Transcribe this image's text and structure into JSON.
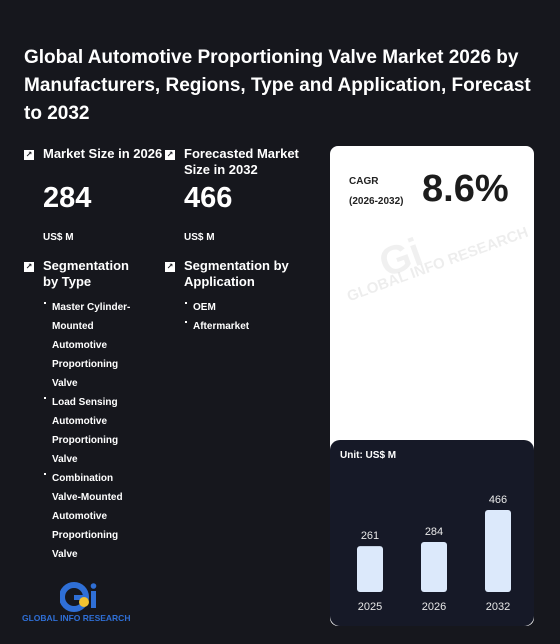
{
  "title": "Global Automotive Proportioning Valve Market 2026 by Manufacturers, Regions, Type and Application, Forecast to 2032",
  "market_size": {
    "label": "Market Size in 2026",
    "value": "284",
    "unit": "US$ M"
  },
  "forecast_size": {
    "label": "Forecasted Market Size in 2032",
    "value": "466",
    "unit": "US$ M"
  },
  "segmentation_type": {
    "label": "Segmentation by Type",
    "items": [
      "Master Cylinder-Mounted Automotive Proportioning Valve",
      "Load Sensing Automotive Proportioning Valve",
      "Combination Valve-Mounted Automotive Proportioning Valve"
    ]
  },
  "segmentation_application": {
    "label": "Segmentation by Application",
    "items": [
      "OEM",
      "Aftermarket"
    ]
  },
  "cagr": {
    "label": "CAGR",
    "period": "(2026-2032)",
    "value": "8.6%"
  },
  "watermark_text": "GLOBAL INFO RESEARCH",
  "logo_text": "GLOBAL INFO RESEARCH",
  "icons": {
    "metric": "arrow-up-right-icon",
    "logo": "gi-logo-icon"
  },
  "colors": {
    "background": "#16171d",
    "card": "#ffffff",
    "chart_panel": "#161927",
    "bar": "#dce9fb",
    "logo_blue": "#2f6fd6",
    "logo_yellow": "#f2c230"
  },
  "chart_data": {
    "type": "bar",
    "unit_label": "Unit: US$ M",
    "categories": [
      "2025",
      "2026",
      "2032"
    ],
    "values": [
      261,
      284,
      466
    ],
    "ylim": [
      0,
      466
    ],
    "grid": false
  }
}
